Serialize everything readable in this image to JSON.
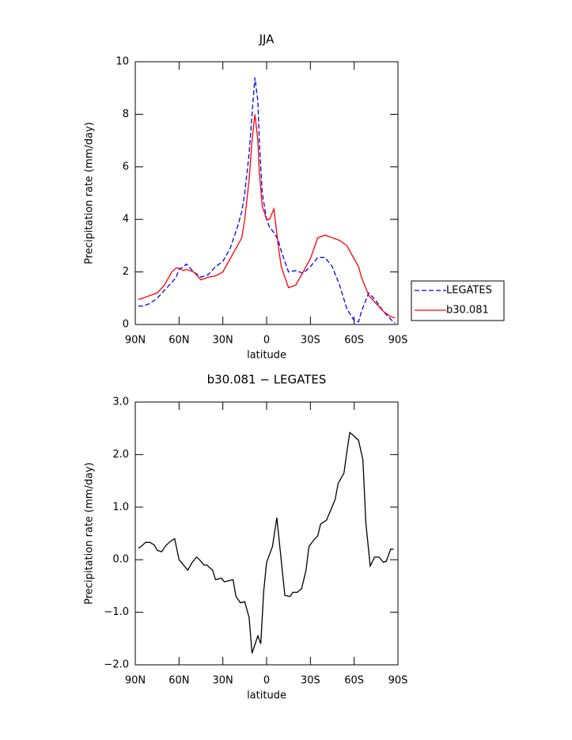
{
  "chart_data": [
    {
      "type": "line",
      "title": "JJA",
      "x_label": "latitude",
      "y_label": "Precipitation rate (mm/day)",
      "x": [
        88,
        85,
        80,
        75,
        70,
        65,
        62,
        60,
        57,
        55,
        50,
        45,
        40,
        35,
        30,
        25,
        20,
        17,
        15,
        12,
        10,
        8,
        6,
        5,
        3,
        0,
        -2,
        -5,
        -8,
        -10,
        -15,
        -20,
        -25,
        -30,
        -35,
        -40,
        -45,
        -50,
        -55,
        -60,
        -63,
        -65,
        -70,
        -75,
        -80,
        -85,
        -88
      ],
      "series": [
        {
          "name": "LEGATES",
          "color": "#0000ff",
          "dashed": true,
          "values": [
            0.7,
            0.7,
            0.8,
            1.0,
            1.3,
            1.6,
            1.8,
            2.1,
            2.2,
            2.3,
            2.0,
            1.8,
            1.9,
            2.2,
            2.4,
            2.9,
            3.7,
            4.3,
            5.0,
            6.5,
            8.0,
            9.4,
            8.5,
            7.0,
            5.0,
            4.0,
            3.7,
            3.5,
            3.2,
            2.8,
            2.0,
            2.05,
            1.95,
            2.2,
            2.55,
            2.55,
            2.2,
            1.5,
            0.6,
            0.15,
            0.1,
            0.5,
            1.2,
            0.9,
            0.5,
            0.2,
            0.05
          ]
        },
        {
          "name": "b30.081",
          "color": "#ff0000",
          "dashed": false,
          "values": [
            0.95,
            1.0,
            1.1,
            1.2,
            1.5,
            2.0,
            2.15,
            2.15,
            2.05,
            2.1,
            2.0,
            1.7,
            1.8,
            1.85,
            2.0,
            2.5,
            3.0,
            3.3,
            4.0,
            5.5,
            7.0,
            8.0,
            7.0,
            5.8,
            4.5,
            4.0,
            4.0,
            4.4,
            3.0,
            2.2,
            1.4,
            1.5,
            2.0,
            2.5,
            3.3,
            3.4,
            3.3,
            3.2,
            3.0,
            2.5,
            2.2,
            1.8,
            1.1,
            0.8,
            0.5,
            0.3,
            0.25
          ]
        }
      ],
      "xlim": [
        90,
        -90
      ],
      "xticks": [
        {
          "value": 90,
          "label": "90N"
        },
        {
          "value": 60,
          "label": "60N"
        },
        {
          "value": 30,
          "label": "30N"
        },
        0,
        {
          "value": -30,
          "label": "30S"
        },
        {
          "value": -60,
          "label": "60S"
        },
        {
          "value": -90,
          "label": "90S"
        }
      ],
      "ylim": [
        0,
        10
      ],
      "yticks": [
        0,
        2,
        4,
        6,
        8,
        10
      ],
      "legend": "right"
    },
    {
      "type": "line",
      "title": "b30.081 − LEGATES",
      "x_label": "latitude",
      "y_label": "Precipitation rate (mm/day)",
      "x": [
        88,
        86,
        83,
        80,
        77,
        75,
        72,
        69,
        66,
        63,
        60,
        57,
        54,
        51,
        48,
        46,
        43,
        41,
        37,
        35,
        31,
        29,
        26,
        23,
        21,
        18,
        15,
        12,
        10,
        6,
        4,
        2,
        0,
        -4,
        -7,
        -12.5,
        -16,
        -18,
        -21,
        -24,
        -27,
        -29,
        -33,
        -35,
        -37,
        -41,
        -44,
        -47,
        -49,
        -53,
        -55,
        -57,
        -60,
        -63,
        -66,
        -68,
        -71,
        -74,
        -77,
        -80,
        -82,
        -85,
        -87
      ],
      "series": [
        {
          "name": "b30.081 − LEGATES",
          "color": "#000000",
          "dashed": false,
          "values": [
            0.22,
            0.25,
            0.33,
            0.33,
            0.28,
            0.18,
            0.15,
            0.27,
            0.35,
            0.4,
            0.0,
            -0.1,
            -0.2,
            -0.05,
            0.05,
            0.0,
            -0.1,
            -0.1,
            -0.2,
            -0.38,
            -0.35,
            -0.42,
            -0.4,
            -0.38,
            -0.7,
            -0.82,
            -0.8,
            -1.1,
            -1.78,
            -1.45,
            -1.6,
            -0.6,
            -0.05,
            0.25,
            0.8,
            -0.68,
            -0.7,
            -0.62,
            -0.62,
            -0.55,
            -0.2,
            0.25,
            0.4,
            0.45,
            0.68,
            0.75,
            0.95,
            1.15,
            1.45,
            1.65,
            2.05,
            2.42,
            2.35,
            2.27,
            1.9,
            0.7,
            -0.12,
            0.05,
            0.05,
            -0.05,
            -0.03,
            0.2,
            0.2
          ]
        }
      ],
      "xlim": [
        90,
        -90
      ],
      "xticks": [
        {
          "value": 90,
          "label": "90N"
        },
        {
          "value": 60,
          "label": "60N"
        },
        {
          "value": 30,
          "label": "30N"
        },
        0,
        {
          "value": -30,
          "label": "30S"
        },
        {
          "value": -60,
          "label": "60S"
        },
        {
          "value": -90,
          "label": "90S"
        }
      ],
      "ylim": [
        -2,
        3
      ],
      "yticks": [
        {
          "value": -2,
          "label": "−2.0"
        },
        {
          "value": -1,
          "label": "−1.0"
        },
        {
          "value": 0,
          "label": "0.0"
        },
        {
          "value": 1,
          "label": "1.0"
        },
        {
          "value": 2,
          "label": "2.0"
        },
        {
          "value": 3,
          "label": "3.0"
        }
      ]
    }
  ]
}
